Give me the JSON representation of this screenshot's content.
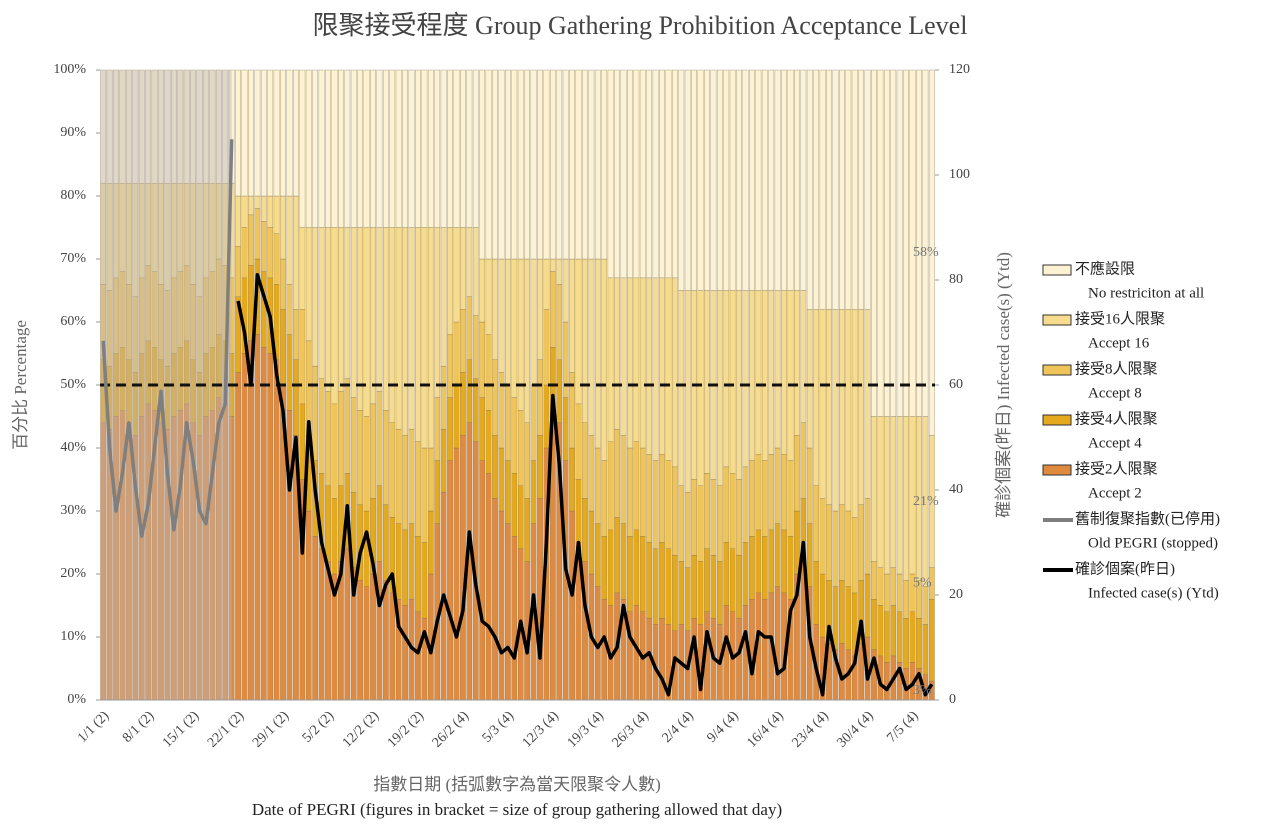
{
  "chart_data": {
    "type": "bar",
    "stacked": true,
    "title": "限聚接受程度 Group Gathering Prohibition Acceptance Level",
    "y_label": "百分比 Percentage",
    "y2_label": "確診個案(昨日) Infected case(s) (Ytd)",
    "x_label": "指數日期 (括弧數字為當天限聚令人數)",
    "x_label_en": "Date of PEGRI (figures in bracket = size of group gathering allowed that day)",
    "categories": [
      "1/1 (2)",
      null,
      null,
      null,
      null,
      null,
      null,
      "8/1 (2)",
      null,
      null,
      null,
      null,
      null,
      null,
      "15/1 (2)",
      null,
      null,
      null,
      null,
      null,
      null,
      "22/1 (2)",
      null,
      null,
      null,
      null,
      null,
      null,
      "29/1 (2)",
      null,
      null,
      null,
      null,
      null,
      null,
      "5/2 (2)",
      null,
      null,
      null,
      null,
      null,
      null,
      "12/2 (2)",
      null,
      null,
      null,
      null,
      null,
      null,
      "19/2 (2)",
      null,
      null,
      null,
      null,
      null,
      null,
      "26/2 (4)",
      null,
      null,
      null,
      null,
      null,
      null,
      "5/3 (4)",
      null,
      null,
      null,
      null,
      null,
      null,
      "12/3 (4)",
      null,
      null,
      null,
      null,
      null,
      null,
      "19/3 (4)",
      null,
      null,
      null,
      null,
      null,
      null,
      "26/3 (4)",
      null,
      null,
      null,
      null,
      null,
      null,
      "2/4 (4)",
      null,
      null,
      null,
      null,
      null,
      null,
      "9/4 (4)",
      null,
      null,
      null,
      null,
      null,
      null,
      "16/4 (4)",
      null,
      null,
      null,
      null,
      null,
      null,
      "23/4 (4)",
      null,
      null,
      null,
      null,
      null,
      null,
      "30/4 (4)",
      null,
      null,
      null,
      null,
      null,
      null,
      "7/5 (4)",
      null,
      null,
      null
    ],
    "ylim": [
      0,
      100
    ],
    "yticks": [
      {
        "value": 0,
        "label": "0%"
      },
      {
        "value": 10,
        "label": "10%"
      },
      {
        "value": 20,
        "label": "20%"
      },
      {
        "value": 30,
        "label": "30%"
      },
      {
        "value": 40,
        "label": "40%"
      },
      {
        "value": 50,
        "label": "50%"
      },
      {
        "value": 60,
        "label": "60%"
      },
      {
        "value": 70,
        "label": "70%"
      },
      {
        "value": 80,
        "label": "80%"
      },
      {
        "value": 90,
        "label": "90%"
      },
      {
        "value": 100,
        "label": "100%"
      }
    ],
    "y2lim": [
      0,
      120
    ],
    "y2ticks": [
      0,
      20,
      40,
      60,
      80,
      100,
      120
    ],
    "reference_line": 50,
    "end_labels": [
      "58%",
      "21%",
      "5%",
      "3%"
    ],
    "series": [
      {
        "name": "不應設限",
        "name_en": "No restriciton at all",
        "type": "bar",
        "color": "#fdf3d3",
        "values": [
          18,
          18,
          18,
          18,
          18,
          18,
          18,
          18,
          18,
          18,
          18,
          18,
          18,
          18,
          18,
          18,
          18,
          18,
          18,
          18,
          18,
          20,
          20,
          20,
          20,
          20,
          20,
          20,
          20,
          20,
          20,
          25,
          25,
          25,
          25,
          25,
          25,
          25,
          25,
          25,
          25,
          25,
          25,
          25,
          25,
          25,
          25,
          25,
          25,
          25,
          25,
          25,
          25,
          25,
          25,
          25,
          25,
          25,
          25,
          30,
          30,
          30,
          30,
          30,
          30,
          30,
          30,
          30,
          30,
          30,
          30,
          30,
          30,
          30,
          30,
          30,
          30,
          30,
          30,
          33,
          33,
          33,
          33,
          33,
          33,
          33,
          33,
          33,
          33,
          33,
          35,
          35,
          35,
          35,
          35,
          35,
          35,
          35,
          35,
          35,
          35,
          35,
          35,
          35,
          35,
          35,
          35,
          35,
          35,
          35,
          38,
          38,
          38,
          38,
          38,
          38,
          38,
          38,
          38,
          38,
          55,
          55,
          55,
          55,
          55,
          55,
          55,
          55,
          55,
          58
        ]
      },
      {
        "name": "接受16人限聚",
        "name_en": "Accept  16",
        "type": "bar",
        "color": "#f6dc8c",
        "values": [
          16,
          17,
          15,
          14,
          16,
          18,
          15,
          13,
          14,
          16,
          17,
          15,
          14,
          13,
          16,
          18,
          15,
          14,
          12,
          13,
          15,
          8,
          5,
          3,
          2,
          4,
          5,
          6,
          10,
          14,
          18,
          13,
          18,
          22,
          24,
          26,
          28,
          26,
          24,
          27,
          29,
          30,
          28,
          26,
          29,
          31,
          32,
          33,
          32,
          34,
          35,
          35,
          27,
          22,
          17,
          15,
          13,
          11,
          14,
          10,
          12,
          16,
          18,
          20,
          22,
          24,
          26,
          20,
          16,
          8,
          2,
          4,
          10,
          18,
          23,
          26,
          28,
          30,
          32,
          26,
          24,
          25,
          27,
          26,
          27,
          28,
          29,
          28,
          29,
          30,
          31,
          32,
          30,
          31,
          29,
          30,
          31,
          28,
          29,
          30,
          28,
          27,
          26,
          27,
          26,
          25,
          26,
          27,
          23,
          21,
          22,
          28,
          30,
          31,
          32,
          31,
          32,
          33,
          31,
          30,
          23,
          24,
          25,
          24,
          25,
          26,
          25,
          26,
          27,
          21
        ]
      },
      {
        "name": "接受8人限聚",
        "name_en": "Accept  8",
        "type": "bar",
        "color": "#efc55a",
        "values": [
          12,
          12,
          12,
          12,
          12,
          12,
          12,
          12,
          12,
          12,
          12,
          12,
          12,
          12,
          12,
          12,
          12,
          12,
          12,
          12,
          12,
          8,
          8,
          8,
          8,
          8,
          8,
          8,
          8,
          8,
          8,
          15,
          15,
          15,
          15,
          15,
          15,
          15,
          15,
          15,
          15,
          15,
          15,
          15,
          15,
          15,
          15,
          15,
          15,
          15,
          15,
          10,
          10,
          10,
          10,
          10,
          10,
          10,
          10,
          12,
          12,
          12,
          12,
          12,
          12,
          12,
          12,
          12,
          12,
          12,
          12,
          12,
          12,
          12,
          12,
          12,
          12,
          12,
          12,
          14,
          14,
          14,
          14,
          14,
          14,
          14,
          14,
          14,
          14,
          14,
          12,
          12,
          12,
          12,
          12,
          12,
          12,
          12,
          12,
          12,
          12,
          12,
          12,
          12,
          12,
          12,
          12,
          12,
          12,
          12,
          12,
          12,
          12,
          12,
          12,
          12,
          12,
          12,
          12,
          12,
          6,
          6,
          6,
          6,
          6,
          6,
          6,
          6,
          6,
          5
        ]
      },
      {
        "name": "接受4人限聚",
        "name_en": "Accept  4",
        "type": "bar",
        "color": "#e4a91c",
        "values": [
          10,
          10,
          10,
          10,
          10,
          10,
          10,
          10,
          10,
          10,
          10,
          10,
          10,
          10,
          10,
          10,
          10,
          10,
          10,
          10,
          10,
          12,
          12,
          12,
          12,
          12,
          12,
          12,
          12,
          12,
          12,
          12,
          12,
          12,
          12,
          12,
          12,
          12,
          12,
          12,
          12,
          12,
          12,
          12,
          12,
          12,
          12,
          12,
          12,
          12,
          12,
          10,
          10,
          10,
          10,
          10,
          10,
          10,
          10,
          10,
          10,
          10,
          10,
          10,
          10,
          10,
          10,
          10,
          10,
          10,
          10,
          10,
          10,
          10,
          10,
          10,
          10,
          10,
          10,
          12,
          12,
          12,
          12,
          12,
          12,
          12,
          12,
          12,
          12,
          12,
          10,
          10,
          10,
          10,
          10,
          10,
          10,
          10,
          10,
          10,
          10,
          10,
          10,
          10,
          10,
          10,
          10,
          10,
          10,
          10,
          10,
          10,
          10,
          10,
          10,
          10,
          10,
          10,
          10,
          10,
          8,
          8,
          8,
          8,
          8,
          8,
          8,
          8,
          8,
          13
        ]
      },
      {
        "name": "接受2人限聚",
        "name_en": "Accept  2",
        "type": "bar",
        "color": "#df8a3e",
        "values": [
          44,
          43,
          45,
          46,
          44,
          42,
          45,
          47,
          46,
          44,
          43,
          45,
          46,
          47,
          44,
          42,
          45,
          46,
          48,
          47,
          45,
          52,
          55,
          57,
          58,
          56,
          55,
          54,
          50,
          46,
          42,
          35,
          30,
          26,
          24,
          22,
          20,
          22,
          24,
          21,
          19,
          18,
          20,
          22,
          19,
          17,
          16,
          15,
          16,
          14,
          13,
          20,
          28,
          33,
          38,
          40,
          42,
          44,
          41,
          38,
          36,
          32,
          30,
          28,
          26,
          24,
          22,
          28,
          32,
          40,
          46,
          44,
          38,
          30,
          25,
          22,
          20,
          18,
          16,
          15,
          17,
          16,
          14,
          15,
          14,
          13,
          12,
          13,
          12,
          11,
          12,
          11,
          13,
          12,
          14,
          13,
          12,
          15,
          14,
          13,
          15,
          16,
          17,
          16,
          17,
          18,
          17,
          16,
          20,
          22,
          18,
          12,
          10,
          9,
          8,
          9,
          8,
          7,
          9,
          10,
          8,
          7,
          6,
          7,
          6,
          5,
          6,
          5,
          4,
          3
        ]
      },
      {
        "name": "舊制復聚指數(已停用)",
        "name_en": "Old PEGRI (stopped)",
        "type": "line",
        "axis": "y",
        "color": "#7f7f7f",
        "values": [
          57,
          40,
          30,
          36,
          44,
          34,
          26,
          31,
          40,
          49,
          36,
          27,
          34,
          44,
          38,
          30,
          28,
          36,
          44,
          47,
          89,
          null,
          null,
          null,
          null,
          null,
          null,
          null,
          null,
          null,
          null,
          null,
          null,
          null,
          null,
          null,
          null,
          null,
          null,
          null,
          null,
          null,
          null,
          null,
          null,
          null,
          null,
          null,
          null,
          null,
          null,
          null,
          null,
          null,
          null,
          null,
          null,
          null,
          null,
          null,
          null,
          null,
          null,
          null,
          null,
          null,
          null,
          null,
          null,
          null,
          null,
          null,
          null,
          null,
          null,
          null,
          null,
          null,
          null,
          null,
          null,
          null,
          null,
          null,
          null,
          null,
          null,
          null,
          null,
          null,
          null,
          null,
          null,
          null,
          null,
          null,
          null,
          null,
          null,
          null,
          null,
          null,
          null,
          null,
          null,
          null,
          null,
          null,
          null,
          null,
          null,
          null,
          null,
          null,
          null,
          null,
          null,
          null,
          null,
          null,
          null,
          null,
          null,
          null,
          null,
          null,
          null,
          null,
          null,
          null
        ]
      },
      {
        "name": "確診個案(昨日)",
        "name_en": "Infected case(s) (Ytd)",
        "type": "line",
        "axis": "y2",
        "color": "#000000",
        "values": [
          null,
          null,
          null,
          null,
          null,
          null,
          null,
          null,
          null,
          null,
          null,
          null,
          null,
          null,
          null,
          null,
          null,
          null,
          null,
          null,
          null,
          76,
          70,
          60,
          81,
          77,
          73,
          62,
          55,
          40,
          50,
          28,
          53,
          40,
          30,
          25,
          20,
          24,
          37,
          20,
          28,
          32,
          26,
          18,
          22,
          24,
          14,
          12,
          10,
          9,
          13,
          9,
          15,
          20,
          16,
          12,
          17,
          32,
          22,
          15,
          14,
          12,
          9,
          10,
          8,
          15,
          9,
          20,
          8,
          30,
          58,
          45,
          25,
          20,
          30,
          18,
          12,
          10,
          12,
          8,
          10,
          18,
          12,
          10,
          8,
          9,
          6,
          4,
          1,
          8,
          7,
          6,
          12,
          2,
          13,
          8,
          7,
          12,
          8,
          9,
          13,
          5,
          13,
          12,
          12,
          5,
          6,
          17,
          20,
          30,
          12,
          6,
          1,
          14,
          8,
          4,
          5,
          7,
          15,
          4,
          8,
          3,
          2,
          4,
          6,
          2,
          3,
          5,
          1,
          3
        ]
      }
    ]
  }
}
